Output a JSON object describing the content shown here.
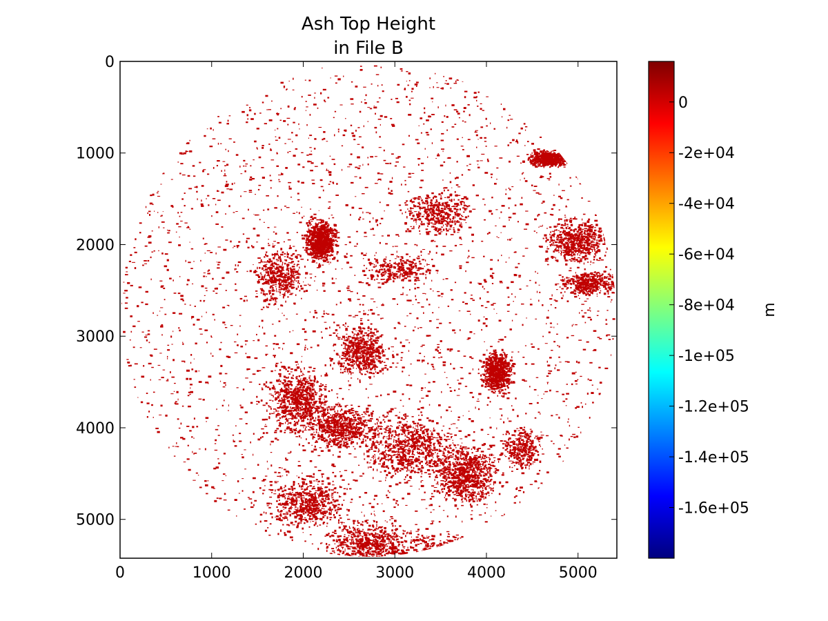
{
  "chart_data": {
    "type": "heatmap",
    "title_lines": [
      "Ash Top Height",
      "in File B"
    ],
    "x_ticks": [
      0,
      1000,
      2000,
      3000,
      4000,
      5000
    ],
    "y_ticks": [
      0,
      1000,
      2000,
      3000,
      4000,
      5000
    ],
    "xlim": [
      0,
      5424
    ],
    "ylim": [
      5424,
      0
    ],
    "y_inverted": true,
    "grid": false,
    "colormap": "jet",
    "colorbar": {
      "label": "m",
      "vmin": -180000,
      "vmax": 16000,
      "ticks": [
        0,
        -20000,
        -40000,
        -60000,
        -80000,
        -100000,
        -120000,
        -140000,
        -160000
      ],
      "tick_labels": [
        "0",
        "-2e+04",
        "-4e+04",
        "-6e+04",
        "-8e+04",
        "-1e+05",
        "-1.2e+05",
        "-1.4e+05",
        "-1.6e+05"
      ],
      "colors": [
        "#00007f",
        "#0000ff",
        "#007fff",
        "#00ffff",
        "#7fff7f",
        "#ffff00",
        "#ff7f00",
        "#ff0000",
        "#7f0000"
      ]
    },
    "disk": {
      "center": [
        2712,
        2712
      ],
      "radius": 2712,
      "data_color": "#c00000",
      "background": "#ffffff",
      "approx_value": 0
    }
  }
}
